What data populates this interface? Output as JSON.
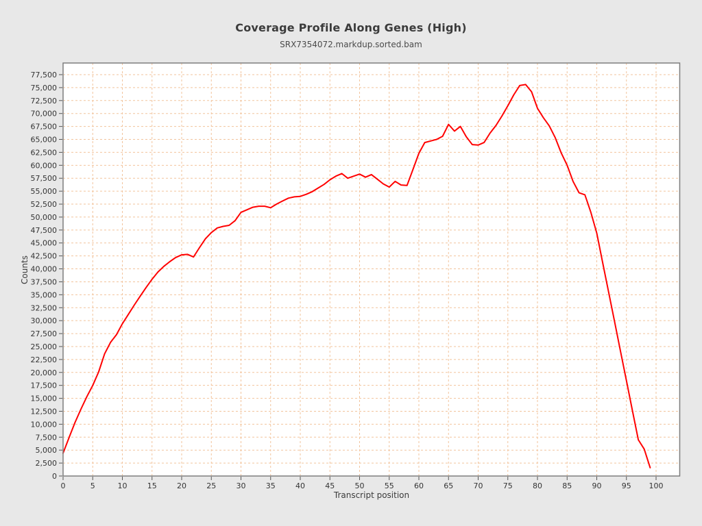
{
  "chart_data": {
    "type": "line",
    "title": "Coverage Profile Along Genes (High)",
    "subtitle": "SRX7354072.markdup.sorted.bam",
    "xlabel": "Transcript position",
    "ylabel": "Counts",
    "legend": "none",
    "grid": true,
    "grid_color": "#f2c39b",
    "plot_bg": "#ffffff",
    "canvas_bg": "#e8e8e8",
    "border_color": "#7d7d7d",
    "xlim": [
      0,
      104
    ],
    "ylim": [
      0,
      79750
    ],
    "x_ticks": [
      0,
      5,
      10,
      15,
      20,
      25,
      30,
      35,
      40,
      45,
      50,
      55,
      60,
      65,
      70,
      75,
      80,
      85,
      90,
      95,
      100
    ],
    "y_ticks": [
      0,
      2500,
      5000,
      7500,
      10000,
      12500,
      15000,
      17500,
      20000,
      22500,
      25000,
      27500,
      30000,
      32500,
      35000,
      37500,
      40000,
      42500,
      45000,
      47500,
      50000,
      52500,
      55000,
      57500,
      60000,
      62500,
      65000,
      67500,
      70000,
      72500,
      75000,
      77500
    ],
    "series": [
      {
        "name": "SRX7354072.markdup.sorted.bam",
        "color": "#ff0000",
        "x": [
          0,
          1,
          2,
          3,
          4,
          5,
          6,
          7,
          8,
          9,
          10,
          11,
          12,
          13,
          14,
          15,
          16,
          17,
          18,
          19,
          20,
          21,
          22,
          23,
          24,
          25,
          26,
          27,
          28,
          29,
          30,
          31,
          32,
          33,
          34,
          35,
          36,
          37,
          38,
          39,
          40,
          41,
          42,
          43,
          44,
          45,
          46,
          47,
          48,
          49,
          50,
          51,
          52,
          53,
          54,
          55,
          56,
          57,
          58,
          59,
          60,
          61,
          62,
          63,
          64,
          65,
          66,
          67,
          68,
          69,
          70,
          71,
          72,
          73,
          74,
          75,
          76,
          77,
          78,
          79,
          80,
          81,
          82,
          83,
          84,
          85,
          86,
          87,
          88,
          89,
          90,
          91,
          92,
          93,
          94,
          95,
          96,
          97,
          98,
          99
        ],
        "values": [
          4400,
          7400,
          10300,
          12900,
          15300,
          17500,
          20100,
          23600,
          25800,
          27300,
          29400,
          31200,
          33000,
          34700,
          36400,
          38000,
          39400,
          40500,
          41400,
          42200,
          42700,
          42800,
          42300,
          44100,
          45800,
          47000,
          47900,
          48200,
          48400,
          49300,
          50900,
          51400,
          51900,
          52100,
          52100,
          51800,
          52500,
          53100,
          53650,
          53900,
          54000,
          54400,
          54900,
          55600,
          56300,
          57200,
          57900,
          58400,
          57500,
          57900,
          58300,
          57700,
          58200,
          57300,
          56400,
          55800,
          56900,
          56200,
          56100,
          59200,
          62300,
          64400,
          64700,
          65000,
          65600,
          67900,
          66600,
          67500,
          65500,
          64000,
          63900,
          64400,
          66200,
          67700,
          69500,
          71500,
          73600,
          75400,
          75600,
          74200,
          71000,
          69200,
          67600,
          65300,
          62400,
          60000,
          56900,
          54700,
          54300,
          50900,
          46900,
          41200,
          35500,
          29800,
          24100,
          18400,
          12700,
          7000,
          5200,
          1600
        ]
      }
    ]
  }
}
